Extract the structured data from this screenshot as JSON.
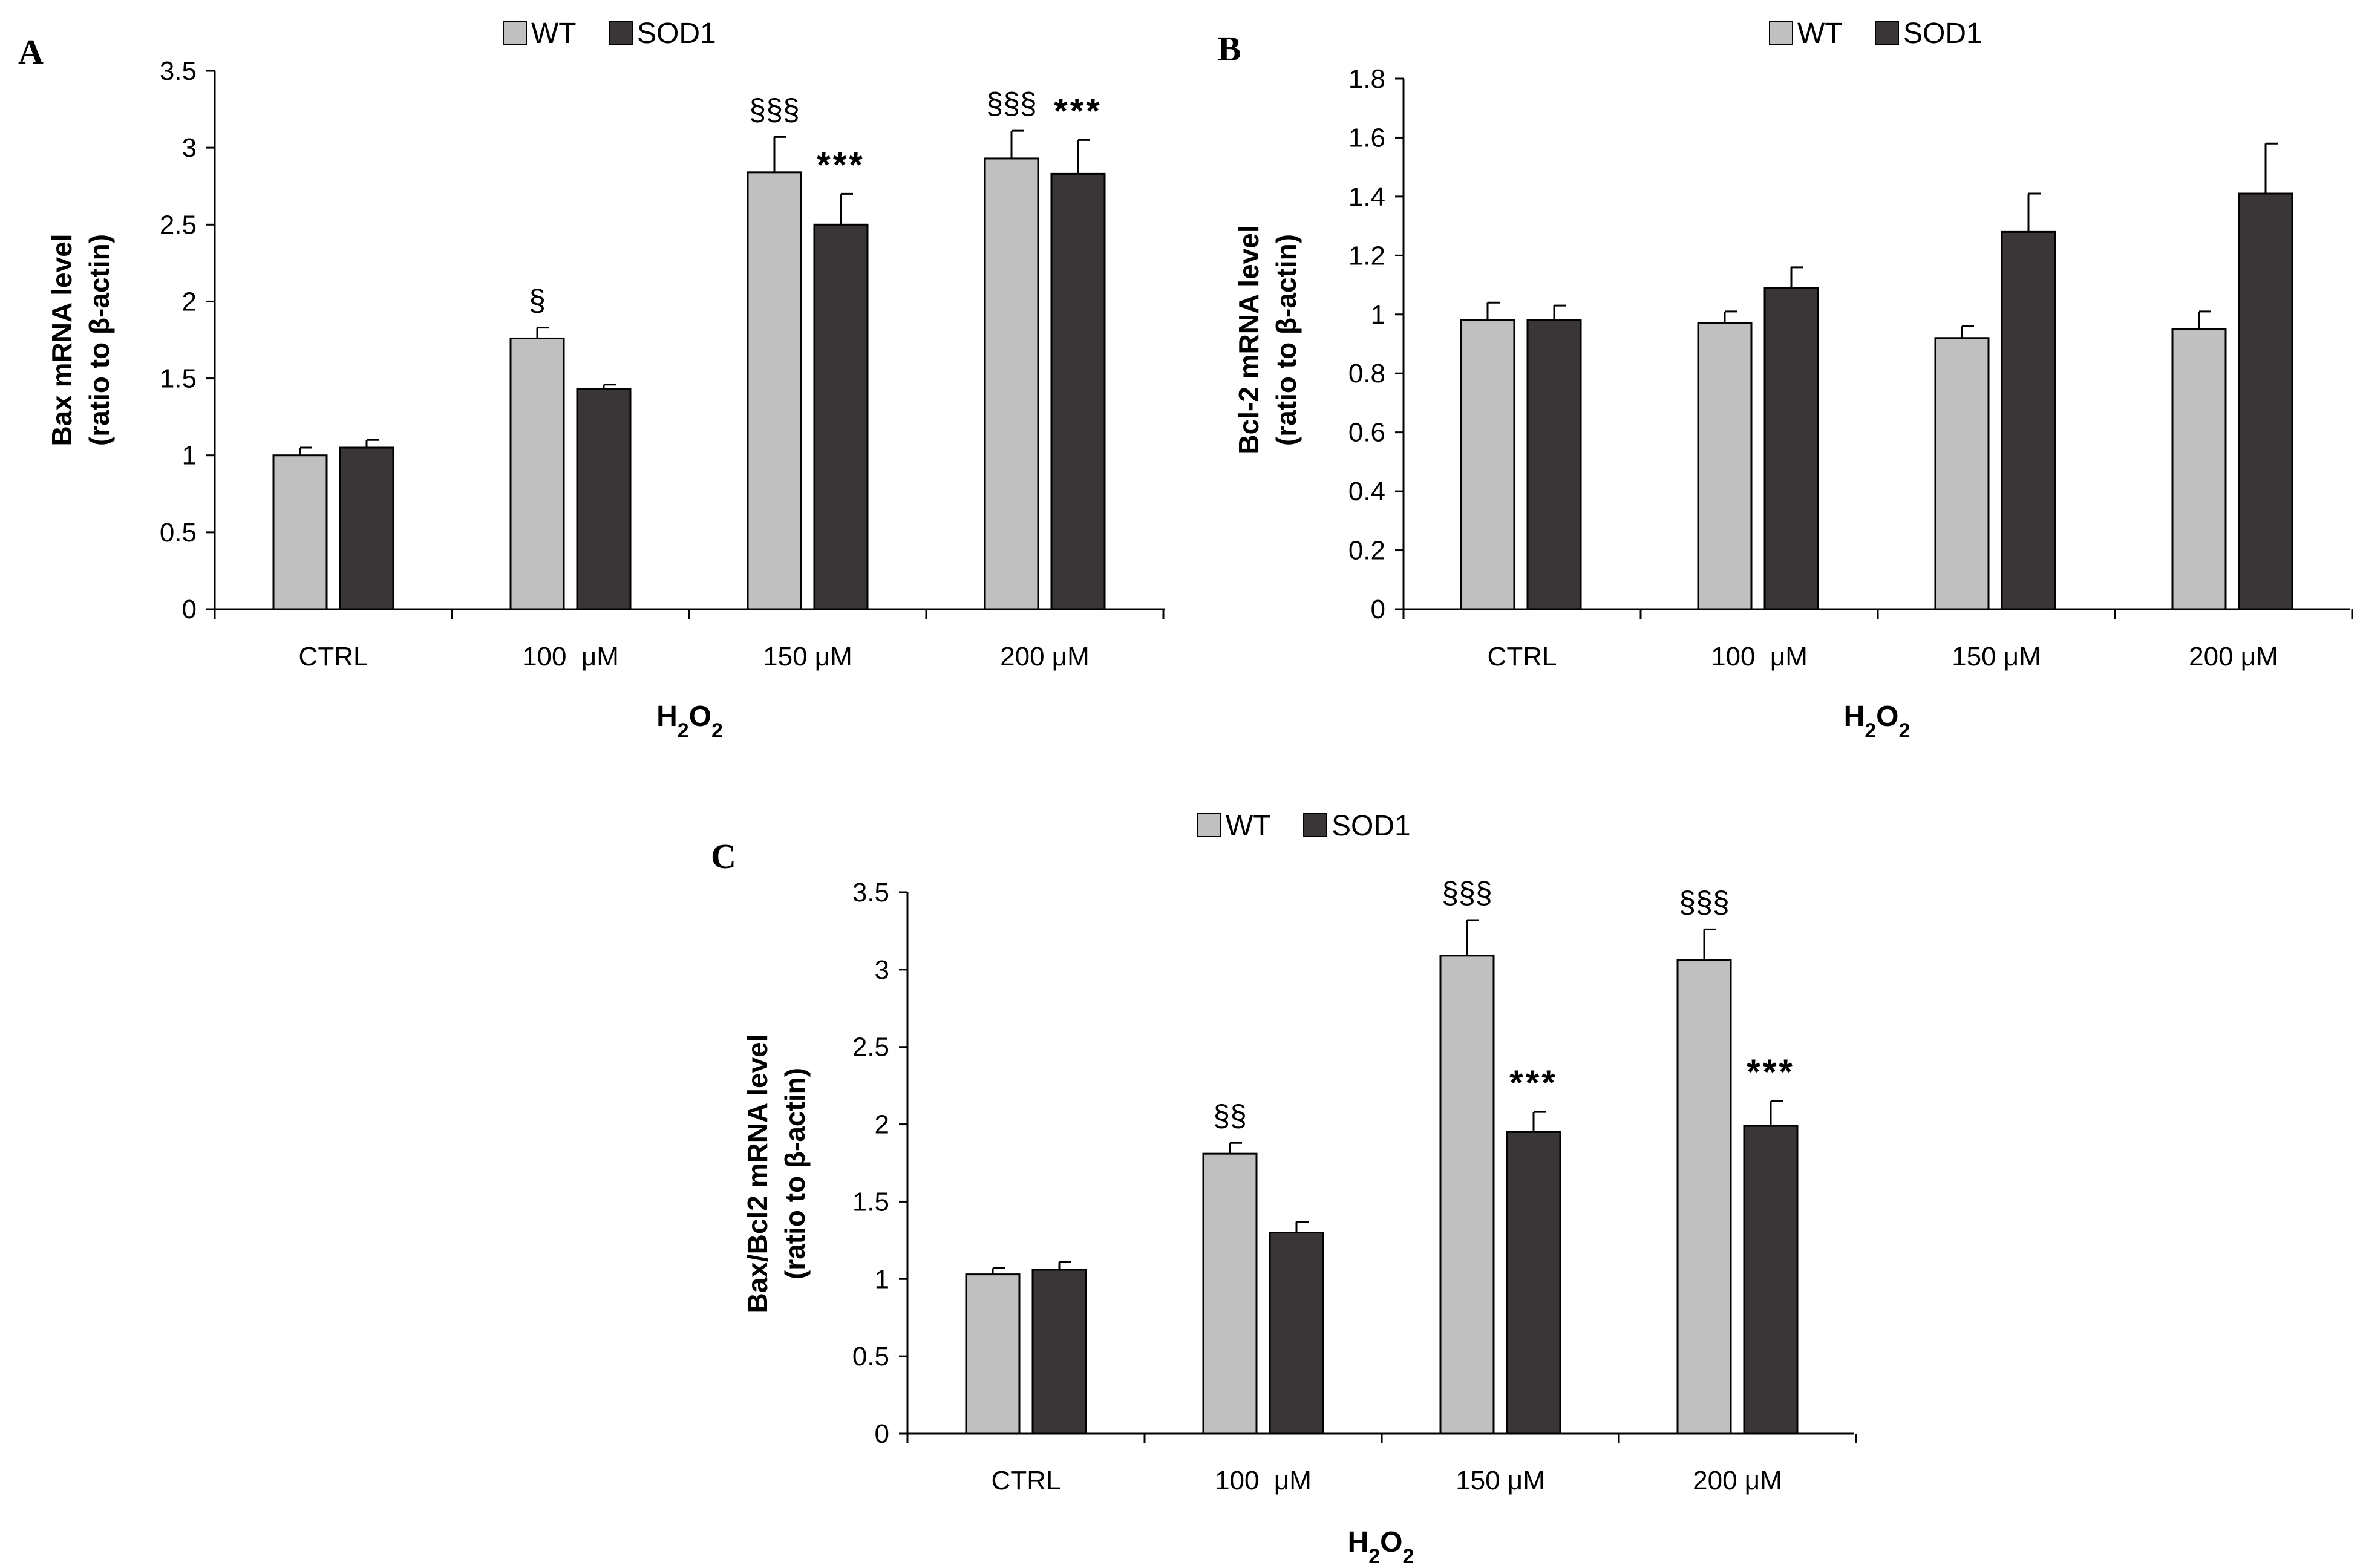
{
  "legend": {
    "wt": "WT",
    "sod1": "SOD1"
  },
  "colors": {
    "wt": "#c0c0c0",
    "sod1": "#3a3536",
    "axis": "#000000"
  },
  "chart_data": [
    {
      "panel": "A",
      "type": "bar",
      "categories": [
        "CTRL",
        "100  μM",
        "150 μM",
        "200 μM"
      ],
      "xlabel": {
        "main": "H",
        "sub1": "2",
        "mid": "O",
        "sub2": "2"
      },
      "ylabel": [
        "Bax mRNA level",
        "(ratio to β-actin)"
      ],
      "ylim": [
        0,
        3.5
      ],
      "ticks": [
        "0",
        "0.5",
        "1",
        "1.5",
        "2",
        "2.5",
        "3",
        "3.5"
      ],
      "series": [
        {
          "name": "WT",
          "values": [
            1.0,
            1.76,
            2.84,
            2.93
          ],
          "errors": [
            0.05,
            0.07,
            0.23,
            0.18
          ]
        },
        {
          "name": "SOD1",
          "values": [
            1.05,
            1.43,
            2.5,
            2.83
          ],
          "errors": [
            0.05,
            0.03,
            0.2,
            0.22
          ]
        }
      ],
      "annotations": [
        {
          "series": 0,
          "index": 1,
          "text": "§",
          "kind": "section"
        },
        {
          "series": 0,
          "index": 2,
          "text": "§§§",
          "kind": "section"
        },
        {
          "series": 1,
          "index": 2,
          "text": "***",
          "kind": "star"
        },
        {
          "series": 0,
          "index": 3,
          "text": "§§§",
          "kind": "section"
        },
        {
          "series": 1,
          "index": 3,
          "text": "***",
          "kind": "star"
        }
      ]
    },
    {
      "panel": "B",
      "type": "bar",
      "categories": [
        "CTRL",
        "100  μM",
        "150 μM",
        "200 μM"
      ],
      "xlabel": {
        "main": "H",
        "sub1": "2",
        "mid": "O",
        "sub2": "2"
      },
      "ylabel": [
        "Bcl-2 mRNA level",
        "(ratio to β-actin)"
      ],
      "ylim": [
        0,
        1.8
      ],
      "ticks": [
        "0",
        "0.2",
        "0.4",
        "0.6",
        "0.8",
        "1",
        "1.2",
        "1.4",
        "1.6",
        "1.8"
      ],
      "series": [
        {
          "name": "WT",
          "values": [
            0.98,
            0.97,
            0.92,
            0.95
          ],
          "errors": [
            0.06,
            0.04,
            0.04,
            0.06
          ]
        },
        {
          "name": "SOD1",
          "values": [
            0.98,
            1.09,
            1.28,
            1.41
          ],
          "errors": [
            0.05,
            0.07,
            0.13,
            0.17
          ]
        }
      ],
      "annotations": []
    },
    {
      "panel": "C",
      "type": "bar",
      "categories": [
        "CTRL",
        "100  μM",
        "150 μM",
        "200 μM"
      ],
      "xlabel": {
        "main": "H",
        "sub1": "2",
        "mid": "O",
        "sub2": "2"
      },
      "ylabel": [
        "Bax/Bcl2 mRNA level",
        "(ratio to β-actin)"
      ],
      "ylim": [
        0,
        3.5
      ],
      "ticks": [
        "0",
        "0.5",
        "1",
        "1.5",
        "2",
        "2.5",
        "3",
        "3.5"
      ],
      "series": [
        {
          "name": "WT",
          "values": [
            1.03,
            1.81,
            3.09,
            3.06
          ],
          "errors": [
            0.04,
            0.07,
            0.23,
            0.2
          ]
        },
        {
          "name": "SOD1",
          "values": [
            1.06,
            1.3,
            1.95,
            1.99
          ],
          "errors": [
            0.05,
            0.07,
            0.13,
            0.16
          ]
        }
      ],
      "annotations": [
        {
          "series": 0,
          "index": 1,
          "text": "§§",
          "kind": "section"
        },
        {
          "series": 0,
          "index": 2,
          "text": "§§§",
          "kind": "section"
        },
        {
          "series": 1,
          "index": 2,
          "text": "***",
          "kind": "star"
        },
        {
          "series": 0,
          "index": 3,
          "text": "§§§",
          "kind": "section"
        },
        {
          "series": 1,
          "index": 3,
          "text": "***",
          "kind": "star"
        }
      ]
    }
  ]
}
